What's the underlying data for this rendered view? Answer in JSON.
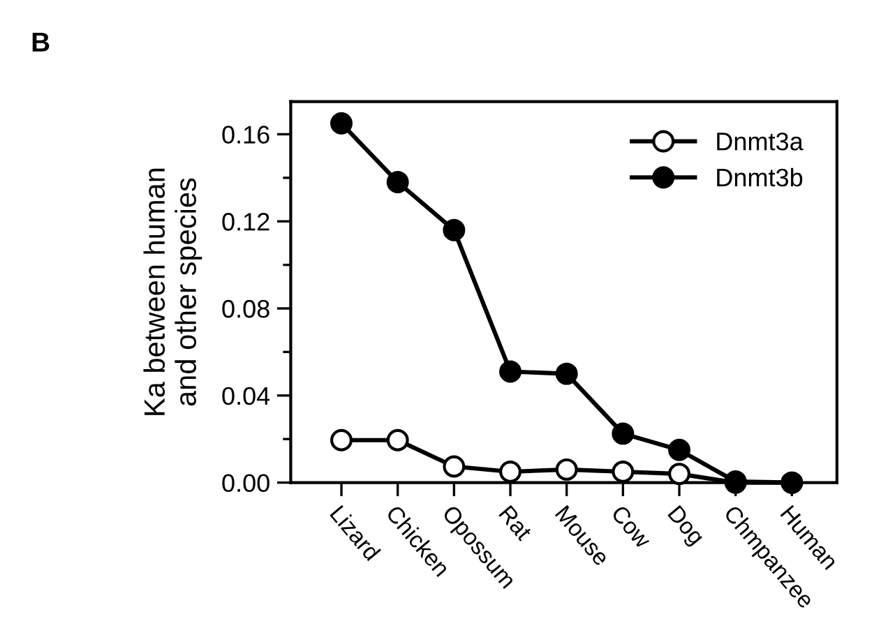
{
  "chart_data": {
    "type": "line",
    "categories": [
      "Lizard",
      "Chicken",
      "Opossum",
      "Rat",
      "Mouse",
      "Cow",
      "Dog",
      "Chmpanzee",
      "Human"
    ],
    "series": [
      {
        "name": "Dnmt3a",
        "color": "#000000",
        "values": [
          0.0195,
          0.0195,
          0.0074,
          0.005,
          0.006,
          0.005,
          0.004,
          0.0,
          0.0
        ]
      },
      {
        "name": "Dnmt3b",
        "color": "#000000",
        "values": [
          0.165,
          0.138,
          0.116,
          0.051,
          0.05,
          0.0225,
          0.015,
          0.0005,
          0.0
        ]
      }
    ],
    "ylabel": "Ka between human\nand other species",
    "ylim": [
      0,
      0.175
    ],
    "yticks": [
      {
        "value": 0,
        "label": "0.00"
      },
      {
        "value": 0.04,
        "label": "0.04"
      },
      {
        "value": 0.08,
        "label": "0.08"
      },
      {
        "value": 0.12,
        "label": "0.12"
      },
      {
        "value": 0.16,
        "label": "0.16"
      }
    ],
    "annotations": [
      "B"
    ],
    "marker": "circle",
    "line_style": "solid",
    "legend": "top right",
    "grid": false
  }
}
